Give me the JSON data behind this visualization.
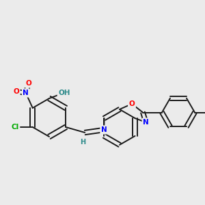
{
  "bg_color": "#ebebeb",
  "bond_color": "#1a1a1a",
  "atom_colors": {
    "O": "#ff0000",
    "N": "#0000ff",
    "Cl": "#00aa00",
    "H_teal": "#2e8b8b",
    "C": "#1a1a1a"
  },
  "lw": 1.4,
  "fontsize": 7.5
}
